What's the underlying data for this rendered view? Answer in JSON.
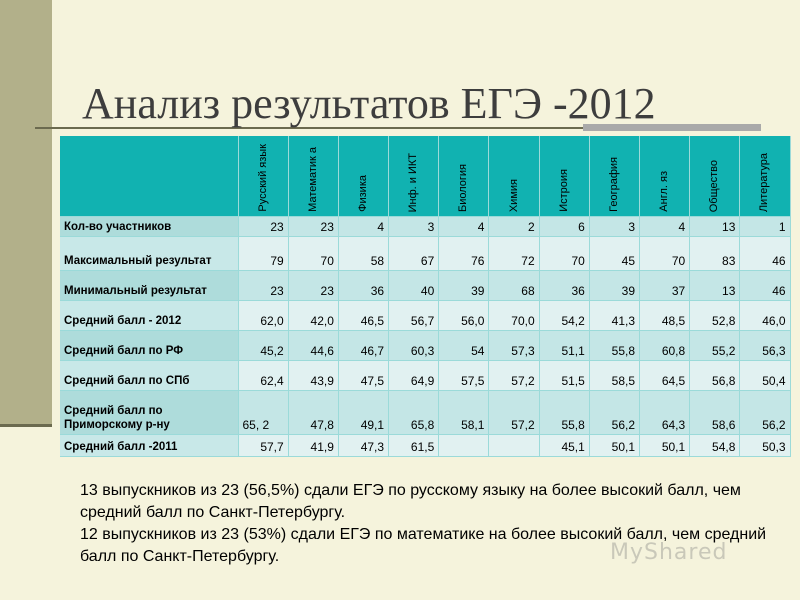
{
  "title": "Анализ результатов ЕГЭ -2012",
  "table": {
    "subjects": [
      "Русский язык",
      "Математик а",
      "Физика",
      "Инф. и ИКТ",
      "Биология",
      "Химия",
      "Истроия",
      "География",
      "Англ. яз",
      "Общество",
      "Литература"
    ],
    "rows": [
      {
        "label": "Кол-во участников",
        "values": [
          "23",
          "23",
          "4",
          "3",
          "4",
          "2",
          "6",
          "3",
          "4",
          "13",
          "1"
        ]
      },
      {
        "label": "Максимальный результат",
        "values": [
          "79",
          "70",
          "58",
          "67",
          "76",
          "72",
          "70",
          "45",
          "70",
          "83",
          "46"
        ]
      },
      {
        "label": "Минимальный результат",
        "values": [
          "23",
          "23",
          "36",
          "40",
          "39",
          "68",
          "36",
          "39",
          "37",
          "13",
          "46"
        ]
      },
      {
        "label": "Средний балл - 2012",
        "values": [
          "62,0",
          "42,0",
          "46,5",
          "56,7",
          "56,0",
          "70,0",
          "54,2",
          "41,3",
          "48,5",
          "52,8",
          "46,0"
        ]
      },
      {
        "label": "Средний балл по РФ",
        "values": [
          "45,2",
          "44,6",
          "46,7",
          "60,3",
          "54",
          "57,3",
          "51,1",
          "55,8",
          "60,8",
          "55,2",
          "56,3"
        ]
      },
      {
        "label": "Средний балл по СПб",
        "values": [
          "62,4",
          "43,9",
          "47,5",
          "64,9",
          "57,5",
          "57,2",
          "51,5",
          "58,5",
          "64,5",
          "56,8",
          "50,4"
        ]
      },
      {
        "label": "Средний балл по Приморскому р-ну",
        "values": [
          "65, 2",
          "47,8",
          "49,1",
          "65,8",
          "58,1",
          "57,2",
          "55,8",
          "56,2",
          "64,3",
          "58,6",
          "56,2"
        ]
      },
      {
        "label": "Средний балл -2011",
        "values": [
          "57,7",
          "41,9",
          "47,3",
          "61,5",
          "",
          "",
          "45,1",
          "50,1",
          "50,1",
          "54,8",
          "50,3"
        ]
      }
    ]
  },
  "notes": [
    "13 выпускников из 23 (56,5%) сдали ЕГЭ по русскому языку на более высокий балл, чем средний балл по Санкт-Петербургу.",
    "12 выпускников из 23 (53%) сдали ЕГЭ по  математике  на более высокий балл, чем средний балл по Санкт-Петербургу."
  ],
  "watermark": "MyShared"
}
